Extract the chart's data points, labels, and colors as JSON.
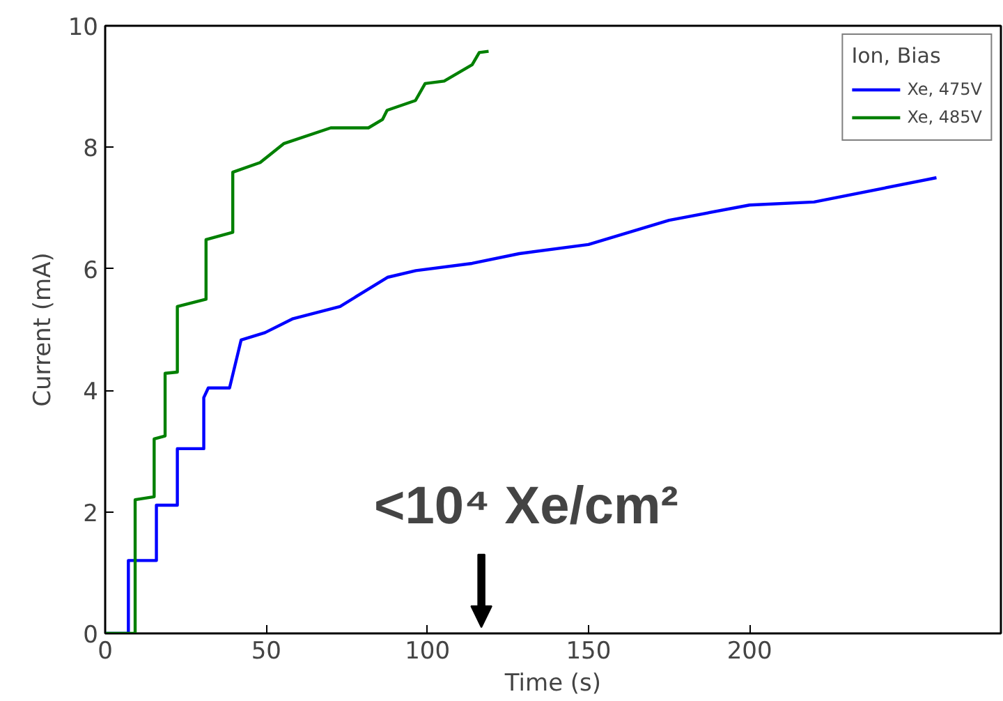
{
  "chart_data": {
    "type": "line",
    "xlabel": "Time (s)",
    "ylabel": "Current (mA)",
    "legend_title": "Ion, Bias",
    "legend": "top right",
    "grid": false,
    "xlim": [
      0,
      278
    ],
    "ylim": [
      0,
      10
    ],
    "xticks": [
      0,
      50,
      100,
      150,
      200
    ],
    "yticks": [
      0,
      2,
      4,
      6,
      8,
      10
    ],
    "series": [
      {
        "name": "Xe, 475V",
        "color": "#0000ff",
        "x": [
          0,
          7.2,
          7.2,
          15.9,
          15.9,
          22.4,
          22.4,
          30.6,
          30.6,
          32,
          38.6,
          42.2,
          49.6,
          58.3,
          72.9,
          87.6,
          96.4,
          113.9,
          128.5,
          150,
          175,
          200,
          220,
          258
        ],
        "values": [
          0,
          0,
          1.2,
          1.2,
          2.11,
          2.11,
          3.04,
          3.04,
          3.88,
          4.04,
          4.04,
          4.83,
          4.95,
          5.18,
          5.38,
          5.86,
          5.97,
          6.09,
          6.25,
          6.4,
          6.8,
          7.05,
          7.1,
          7.5
        ]
      },
      {
        "name": "Xe, 485V",
        "color": "#008000",
        "x": [
          0,
          9.3,
          9.3,
          15.2,
          15.2,
          18.6,
          18.6,
          22.4,
          22.4,
          31.3,
          31.3,
          39.6,
          39.6,
          48.1,
          55.4,
          70,
          81.7,
          86.1,
          87.5,
          96.3,
          99.3,
          105.2,
          113.9,
          116.1,
          119
        ],
        "values": [
          0,
          0,
          2.2,
          2.25,
          3.2,
          3.25,
          4.28,
          4.3,
          5.38,
          5.5,
          6.48,
          6.6,
          7.59,
          7.75,
          8.06,
          8.32,
          8.32,
          8.46,
          8.61,
          8.77,
          9.05,
          9.09,
          9.36,
          9.56,
          9.58
        ]
      }
    ],
    "annotations": [
      "<10⁴ Xe/cm²"
    ]
  }
}
